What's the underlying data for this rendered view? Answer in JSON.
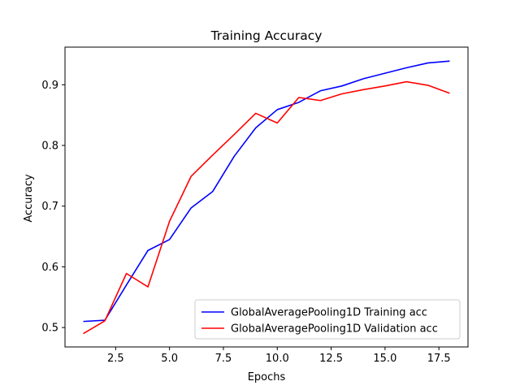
{
  "chart_data": {
    "type": "line",
    "title": "Training Accuracy",
    "xlabel": "Epochs",
    "ylabel": "Accuracy",
    "xlim": [
      0.15,
      18.85
    ],
    "ylim": [
      0.468,
      0.962
    ],
    "xticks": [
      2.5,
      5.0,
      7.5,
      10.0,
      12.5,
      15.0,
      17.5
    ],
    "xtick_labels": [
      "2.5",
      "5.0",
      "7.5",
      "10.0",
      "12.5",
      "15.0",
      "17.5"
    ],
    "yticks": [
      0.5,
      0.6,
      0.7,
      0.8,
      0.9
    ],
    "ytick_labels": [
      "0.5",
      "0.6",
      "0.7",
      "0.8",
      "0.9"
    ],
    "grid": false,
    "legend_position": "lower-right",
    "x": [
      1,
      2,
      3,
      4,
      5,
      6,
      7,
      8,
      9,
      10,
      11,
      12,
      13,
      14,
      15,
      16,
      17,
      18
    ],
    "series": [
      {
        "name": "GlobalAveragePooling1D Training acc",
        "color": "#0000ff",
        "values": [
          0.51,
          0.512,
          0.57,
          0.627,
          0.645,
          0.697,
          0.724,
          0.782,
          0.829,
          0.859,
          0.871,
          0.89,
          0.898,
          0.91,
          0.919,
          0.928,
          0.936,
          0.939
        ]
      },
      {
        "name": "GlobalAveragePooling1D Validation acc",
        "color": "#ff0000",
        "values": [
          0.49,
          0.511,
          0.589,
          0.567,
          0.675,
          0.749,
          0.784,
          0.818,
          0.853,
          0.837,
          0.879,
          0.874,
          0.885,
          0.892,
          0.898,
          0.905,
          0.899,
          0.886
        ]
      }
    ]
  }
}
